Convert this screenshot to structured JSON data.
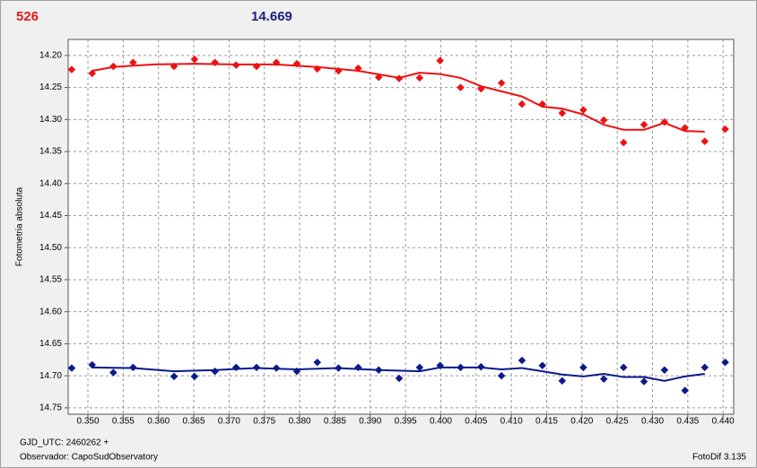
{
  "chart_data": {
    "type": "scatter",
    "header_left": "526",
    "header_right": "14.669",
    "ylabel": "Fotometria absoluta",
    "footer_left_1": "GJD_UTC: 2460262 +",
    "footer_left_2": "Observador: CapoSudObservatory",
    "footer_right": "FotoDif 3.135",
    "xlim": [
      0.3472,
      0.4415
    ],
    "ylim": [
      14.175,
      14.76
    ],
    "invert_y": true,
    "grid": true,
    "xticks": [
      {
        "value": 0.35,
        "label": "0.350"
      },
      {
        "value": 0.355,
        "label": "0.355"
      },
      {
        "value": 0.36,
        "label": "0.360"
      },
      {
        "value": 0.365,
        "label": "0.365"
      },
      {
        "value": 0.37,
        "label": "0.370"
      },
      {
        "value": 0.375,
        "label": "0.375"
      },
      {
        "value": 0.38,
        "label": "0.380"
      },
      {
        "value": 0.385,
        "label": "0.385"
      },
      {
        "value": 0.39,
        "label": "0.390"
      },
      {
        "value": 0.395,
        "label": "0.395"
      },
      {
        "value": 0.4,
        "label": "0.400"
      },
      {
        "value": 0.405,
        "label": "0.405"
      },
      {
        "value": 0.41,
        "label": "0.410"
      },
      {
        "value": 0.415,
        "label": "0.415"
      },
      {
        "value": 0.42,
        "label": "0.420"
      },
      {
        "value": 0.425,
        "label": "0.425"
      },
      {
        "value": 0.43,
        "label": "0.430"
      },
      {
        "value": 0.435,
        "label": "0.435"
      },
      {
        "value": 0.44,
        "label": "0.440"
      }
    ],
    "yticks": [
      {
        "value": 14.2,
        "label": "14.20"
      },
      {
        "value": 14.25,
        "label": "14.25"
      },
      {
        "value": 14.3,
        "label": "14.30"
      },
      {
        "value": 14.35,
        "label": "14.35"
      },
      {
        "value": 14.4,
        "label": "14.40"
      },
      {
        "value": 14.45,
        "label": "14.45"
      },
      {
        "value": 14.5,
        "label": "14.50"
      },
      {
        "value": 14.55,
        "label": "14.55"
      },
      {
        "value": 14.6,
        "label": "14.60"
      },
      {
        "value": 14.65,
        "label": "14.65"
      },
      {
        "value": 14.7,
        "label": "14.70"
      },
      {
        "value": 14.75,
        "label": "14.75"
      }
    ],
    "series": [
      {
        "color": "#ee1111",
        "x": [
          0.3477,
          0.3506,
          0.3536,
          0.3564,
          0.3622,
          0.3651,
          0.368,
          0.371,
          0.3739,
          0.3767,
          0.3796,
          0.3825,
          0.3855,
          0.3883,
          0.3912,
          0.3941,
          0.397,
          0.3999,
          0.4028,
          0.4057,
          0.4086,
          0.4115,
          0.4144,
          0.4172,
          0.4202,
          0.4231,
          0.4259,
          0.4288,
          0.4317,
          0.4346,
          0.4374,
          0.4403
        ],
        "values": [
          14.222,
          14.228,
          14.217,
          14.211,
          14.217,
          14.206,
          14.211,
          14.215,
          14.217,
          14.211,
          14.213,
          14.221,
          14.224,
          14.22,
          14.234,
          14.236,
          14.235,
          14.208,
          14.25,
          14.252,
          14.243,
          14.276,
          14.276,
          14.29,
          14.285,
          14.301,
          14.336,
          14.308,
          14.304,
          14.313,
          14.334,
          14.315
        ]
      },
      {
        "color": "#0a1a8c",
        "x": [
          0.3477,
          0.3506,
          0.3536,
          0.3564,
          0.3622,
          0.3651,
          0.368,
          0.371,
          0.3739,
          0.3767,
          0.3796,
          0.3825,
          0.3855,
          0.3883,
          0.3912,
          0.3941,
          0.397,
          0.3999,
          0.4028,
          0.4057,
          0.4086,
          0.4115,
          0.4144,
          0.4172,
          0.4202,
          0.4231,
          0.4259,
          0.4288,
          0.4317,
          0.4346,
          0.4374,
          0.4403
        ],
        "values": [
          14.688,
          14.683,
          14.695,
          14.687,
          14.701,
          14.701,
          14.693,
          14.687,
          14.687,
          14.688,
          14.693,
          14.679,
          14.688,
          14.687,
          14.691,
          14.704,
          14.687,
          14.684,
          14.687,
          14.686,
          14.7,
          14.676,
          14.684,
          14.708,
          14.687,
          14.705,
          14.687,
          14.709,
          14.691,
          14.723,
          14.687,
          14.679
        ]
      }
    ],
    "fits": [
      {
        "color": "#ee1111",
        "x": [
          0.3506,
          0.3536,
          0.3593,
          0.3651,
          0.371,
          0.3767,
          0.3825,
          0.3883,
          0.3941,
          0.397,
          0.3999,
          0.4028,
          0.4057,
          0.4086,
          0.4115,
          0.4144,
          0.4172,
          0.4202,
          0.4231,
          0.4259,
          0.4288,
          0.4317,
          0.4346,
          0.4374
        ],
        "values": [
          14.224,
          14.218,
          14.214,
          14.213,
          14.214,
          14.214,
          14.218,
          14.224,
          14.235,
          14.227,
          14.229,
          14.235,
          14.248,
          14.256,
          14.264,
          14.28,
          14.283,
          14.292,
          14.308,
          14.316,
          14.316,
          14.305,
          14.318,
          14.319
        ]
      },
      {
        "color": "#0a1a8c",
        "x": [
          0.3506,
          0.3564,
          0.3622,
          0.368,
          0.3739,
          0.3796,
          0.3855,
          0.3912,
          0.397,
          0.3999,
          0.4028,
          0.4057,
          0.4086,
          0.4115,
          0.4144,
          0.4172,
          0.4202,
          0.4231,
          0.4259,
          0.4288,
          0.4317,
          0.4346,
          0.4374
        ],
        "values": [
          14.687,
          14.688,
          14.693,
          14.691,
          14.688,
          14.69,
          14.688,
          14.691,
          14.693,
          14.687,
          14.687,
          14.687,
          14.69,
          14.688,
          14.693,
          14.698,
          14.701,
          14.697,
          14.702,
          14.702,
          14.708,
          14.701,
          14.697
        ]
      }
    ]
  }
}
